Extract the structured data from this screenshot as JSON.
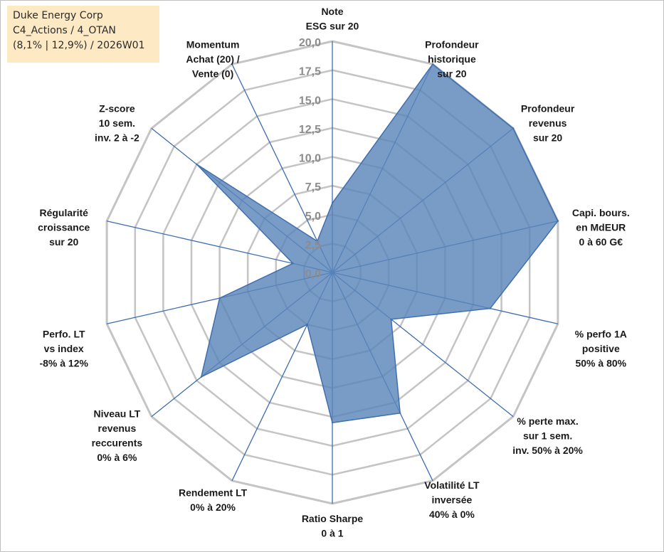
{
  "info_box": {
    "line1": "Duke Energy Corp",
    "line2": "C4_Actions / 4_OTAN",
    "line3": "(8,1% | 12,9%) / 2026W01"
  },
  "colors": {
    "fill": "#5b86bb",
    "stroke": "#3f6fae",
    "spoke": "#3d6cb0",
    "grid": "#c4c4c4",
    "info_bg": "#fde9c4"
  },
  "chart_data": {
    "type": "radar",
    "title": "Duke Energy Corp",
    "rmin": 0,
    "rmax": 20,
    "ticks": [
      "0,0",
      "2,5",
      "5,0",
      "7,5",
      "10,0",
      "12,5",
      "15,0",
      "17,5",
      "20,0"
    ],
    "categories": [
      {
        "label": [
          "Note",
          "ESG sur 20"
        ],
        "value": 6.0
      },
      {
        "label": [
          "Profondeur",
          "historique",
          "sur 20"
        ],
        "value": 20.0
      },
      {
        "label": [
          "Profondeur",
          "revenus",
          "sur 20"
        ],
        "value": 20.0
      },
      {
        "label": [
          "Capi. bours.",
          "en MdEUR",
          "0 à 60 G€"
        ],
        "value": 20.0
      },
      {
        "label": [
          "% perfo 1A",
          "positive",
          "50% à 80%"
        ],
        "value": 14.0
      },
      {
        "label": [
          "% perte max.",
          "sur 1 sem.",
          "inv. 50% à 20%"
        ],
        "value": 6.5
      },
      {
        "label": [
          "Volatilité LT",
          "inversée",
          "40% à 0%"
        ],
        "value": 13.5
      },
      {
        "label": [
          "Ratio Sharpe",
          "0 à 1"
        ],
        "value": 13.0
      },
      {
        "label": [
          "Rendement LT",
          "0% à 20%"
        ],
        "value": 5.0
      },
      {
        "label": [
          "Niveau LT",
          "revenus",
          "reccurents",
          "0% à 6%"
        ],
        "value": 14.5
      },
      {
        "label": [
          "Perfo. LT",
          "vs index",
          "-8% à 12%"
        ],
        "value": 10.0
      },
      {
        "label": [
          "Régularité",
          "croissance",
          "sur 20"
        ],
        "value": 3.5
      },
      {
        "label": [
          "Z-score",
          "10 sem.",
          "inv. 2 à -2"
        ],
        "value": 15.0
      },
      {
        "label": [
          "Momentum",
          "Achat (20) /",
          "Vente (0)"
        ],
        "value": 3.0
      }
    ]
  }
}
